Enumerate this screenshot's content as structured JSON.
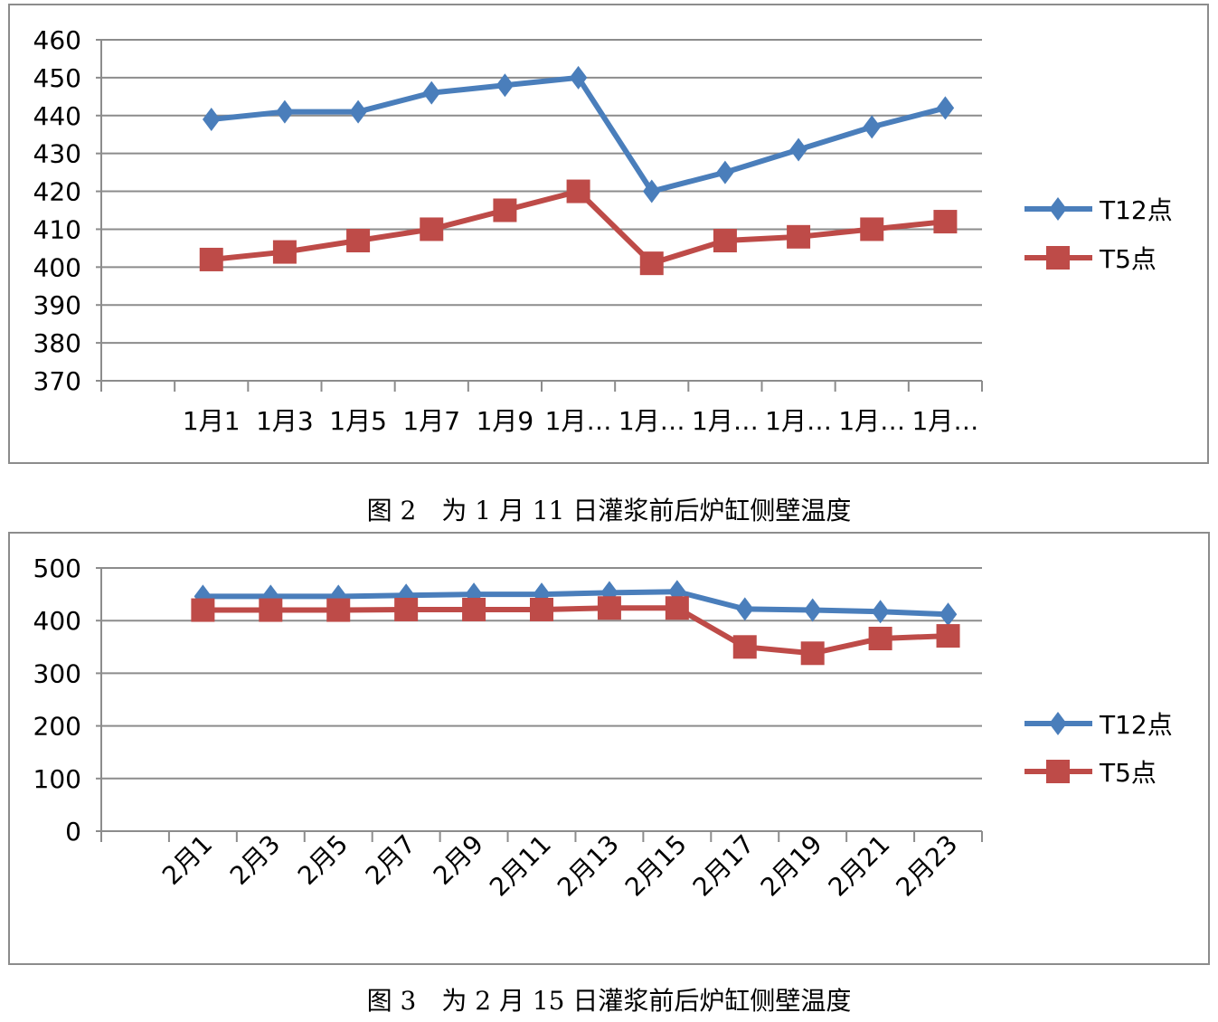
{
  "chart_data": [
    {
      "type": "line",
      "title": "",
      "xlabel": "",
      "ylabel": "",
      "ylim": [
        370,
        460
      ],
      "ytick_step": 10,
      "grid": true,
      "legend": "right",
      "categories": [
        "",
        "1月1",
        "1月3",
        "1月5",
        "1月7",
        "1月9",
        "1月…",
        "1月…",
        "1月…",
        "1月…",
        "1月…",
        "1月…"
      ],
      "series": [
        {
          "name": "T12点",
          "color": "#4a7ebb",
          "marker": "diamond",
          "values": [
            null,
            439,
            441,
            441,
            446,
            448,
            450,
            420,
            425,
            431,
            437,
            442
          ]
        },
        {
          "name": "T5点",
          "color": "#be4b48",
          "marker": "square",
          "values": [
            null,
            402,
            404,
            407,
            410,
            415,
            420,
            401,
            407,
            408,
            410,
            412
          ]
        }
      ]
    },
    {
      "type": "line",
      "title": "",
      "xlabel": "",
      "ylabel": "",
      "ylim": [
        0,
        500
      ],
      "ytick_step": 100,
      "grid": true,
      "legend": "right",
      "categories": [
        "",
        "2月1",
        "2月3",
        "2月5",
        "2月7",
        "2月9",
        "2月11",
        "2月13",
        "2月15",
        "2月17",
        "2月19",
        "2月21",
        "2月23"
      ],
      "series": [
        {
          "name": "T12点",
          "color": "#4a7ebb",
          "marker": "diamond",
          "values": [
            null,
            446,
            446,
            446,
            448,
            450,
            450,
            453,
            455,
            422,
            420,
            417,
            412
          ]
        },
        {
          "name": "T5点",
          "color": "#be4b48",
          "marker": "square",
          "values": [
            null,
            420,
            420,
            420,
            421,
            421,
            421,
            424,
            424,
            350,
            338,
            366,
            371
          ]
        }
      ]
    }
  ],
  "captions": [
    "图 2　为 1 月 11 日灌浆前后炉缸侧壁温度",
    "图 3　为 2 月 15 日灌浆前后炉缸侧壁温度"
  ]
}
